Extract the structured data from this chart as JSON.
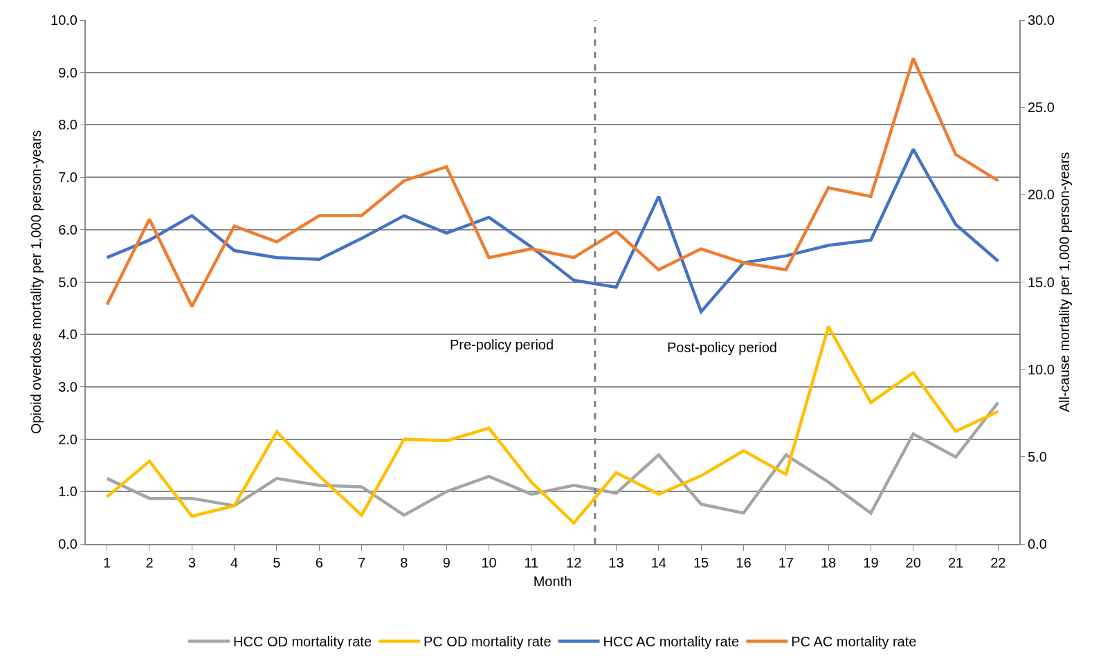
{
  "chart_data": {
    "type": "line",
    "x": [
      1,
      2,
      3,
      4,
      5,
      6,
      7,
      8,
      9,
      10,
      11,
      12,
      13,
      14,
      15,
      16,
      17,
      18,
      19,
      20,
      21,
      22
    ],
    "xlabel": "Month",
    "ylabel": "Opioid overdose mortality per 1,000 person-years",
    "y2label": "All-cause mortality per 1,000 person-years",
    "xlim": [
      0.5,
      22.5
    ],
    "xticks": [
      1,
      2,
      3,
      4,
      5,
      6,
      7,
      8,
      9,
      10,
      11,
      12,
      13,
      14,
      15,
      16,
      17,
      18,
      19,
      20,
      21,
      22
    ],
    "ylim": [
      0,
      10
    ],
    "yticks": [
      {
        "value": 0,
        "label": "0.0"
      },
      {
        "value": 1,
        "label": "1.0"
      },
      {
        "value": 2,
        "label": "2.0"
      },
      {
        "value": 3,
        "label": "3.0"
      },
      {
        "value": 4,
        "label": "4.0"
      },
      {
        "value": 5,
        "label": "5.0"
      },
      {
        "value": 6,
        "label": "6.0"
      },
      {
        "value": 7,
        "label": "7.0"
      },
      {
        "value": 8,
        "label": "8.0"
      },
      {
        "value": 9,
        "label": "9.0"
      },
      {
        "value": 10,
        "label": "10.0"
      }
    ],
    "y2lim": [
      0,
      30
    ],
    "y2ticks": [
      {
        "value": 0,
        "label": "0.0"
      },
      {
        "value": 5,
        "label": "5.0"
      },
      {
        "value": 10,
        "label": "10.0"
      },
      {
        "value": 15,
        "label": "15.0"
      },
      {
        "value": 20,
        "label": "20.0"
      },
      {
        "value": 25,
        "label": "25.0"
      },
      {
        "value": 30,
        "label": "30.0"
      }
    ],
    "series": [
      {
        "name": "HCC OD mortality rate",
        "color": "#a5a5a5",
        "values": [
          1.25,
          0.87,
          0.87,
          0.73,
          1.25,
          1.12,
          1.09,
          0.55,
          1.0,
          1.29,
          0.95,
          1.12,
          0.97,
          1.7,
          0.76,
          0.59,
          1.7,
          1.18,
          0.59,
          2.1,
          1.66,
          2.7
        ]
      },
      {
        "name": "PC OD mortality rate",
        "color": "#ffc000",
        "values": [
          0.9,
          1.58,
          0.53,
          0.73,
          2.14,
          1.3,
          0.55,
          2.0,
          1.97,
          2.21,
          1.18,
          0.4,
          1.36,
          0.95,
          1.3,
          1.78,
          1.33,
          4.15,
          2.7,
          3.27,
          2.15,
          2.53
        ]
      },
      {
        "name": "HCC AC mortality rate",
        "color": "#4472c4",
        "axis": "y2",
        "values": [
          16.4,
          17.4,
          18.8,
          16.8,
          16.4,
          16.3,
          17.5,
          18.8,
          17.8,
          18.7,
          17.0,
          15.1,
          14.7,
          19.9,
          13.3,
          16.1,
          16.5,
          17.1,
          17.4,
          22.6,
          18.3,
          16.2
        ]
      },
      {
        "name": "PC AC mortality rate",
        "color": "#ed7d31",
        "axis": "y2",
        "values": [
          13.7,
          18.6,
          13.6,
          18.2,
          17.3,
          18.8,
          18.8,
          20.8,
          21.6,
          16.4,
          16.9,
          16.4,
          17.9,
          15.7,
          16.9,
          16.1,
          15.7,
          20.4,
          19.9,
          27.8,
          22.3,
          20.8
        ]
      }
    ],
    "ref_lines": [
      {
        "axis": "x",
        "value": 12.5,
        "color": "#7f7f7f",
        "line_style": "dashed"
      }
    ],
    "annotations": [
      "Pre-policy period",
      "Post-policy period"
    ],
    "grid": "y",
    "legend": "bottom",
    "marker": "none",
    "line_style": "solid"
  }
}
